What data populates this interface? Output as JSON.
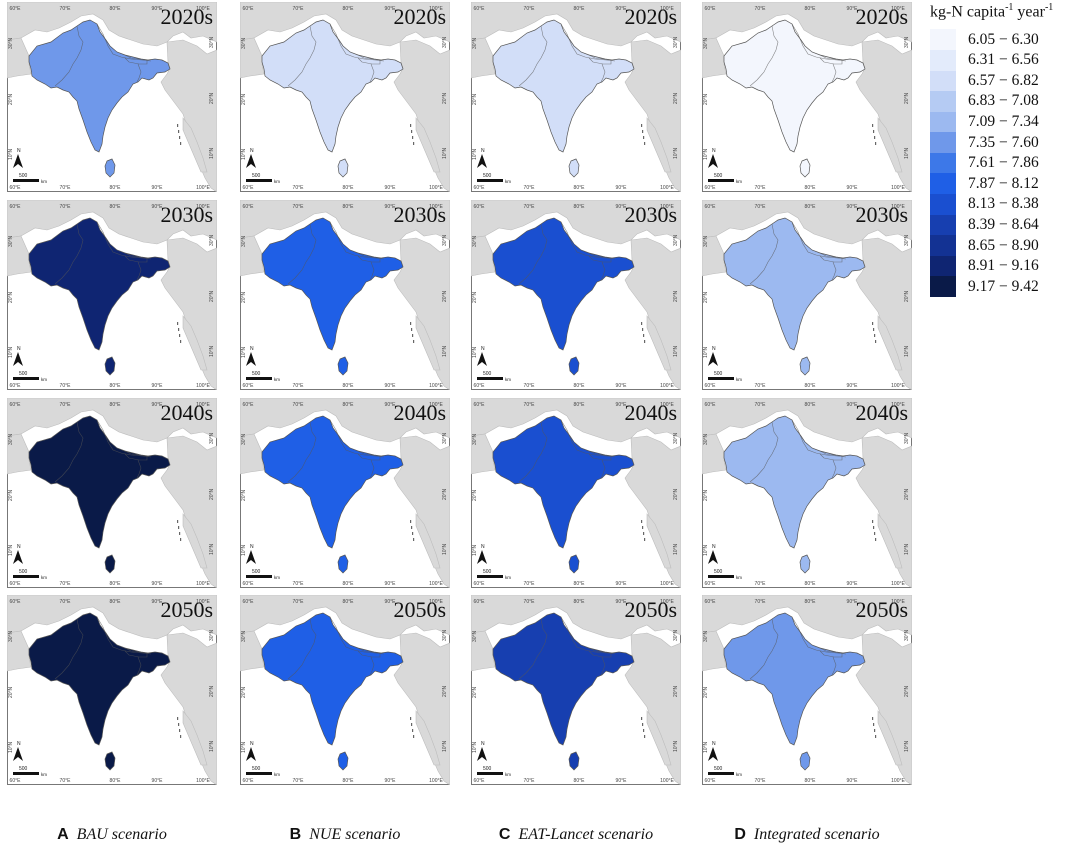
{
  "legend": {
    "title_main": "kg-N capita",
    "title_sup1": "-1",
    "title_mid": " year",
    "title_sup2": "-1",
    "classes": [
      {
        "label": "6.05 − 6.30",
        "color": "#f3f6fd"
      },
      {
        "label": "6.31 − 6.56",
        "color": "#e3ebfb"
      },
      {
        "label": "6.57 − 6.82",
        "color": "#d2def8"
      },
      {
        "label": "6.83 − 7.08",
        "color": "#b5cbf3"
      },
      {
        "label": "7.09 − 7.34",
        "color": "#9cb9f0"
      },
      {
        "label": "7.35 − 7.60",
        "color": "#6f98ea"
      },
      {
        "label": "7.61 − 7.86",
        "color": "#3d78e8"
      },
      {
        "label": "7.87 − 8.12",
        "color": "#1f5fe6"
      },
      {
        "label": "8.13 − 8.38",
        "color": "#1a4fd0"
      },
      {
        "label": "8.39 − 8.64",
        "color": "#173fb0"
      },
      {
        "label": "8.65 − 8.90",
        "color": "#133293"
      },
      {
        "label": "8.91 − 9.16",
        "color": "#0f2572"
      },
      {
        "label": "9.17 − 9.42",
        "color": "#0a1a48"
      }
    ]
  },
  "decades": [
    "2020s",
    "2030s",
    "2040s",
    "2050s"
  ],
  "scenarios": [
    {
      "letter": "A",
      "name": "BAU scenario",
      "class_index": [
        5,
        11,
        12,
        12
      ]
    },
    {
      "letter": "B",
      "name": "NUE scenario",
      "class_index": [
        2,
        7,
        7,
        7
      ]
    },
    {
      "letter": "C",
      "name": "EAT-Lancet scenario",
      "class_index": [
        2,
        8,
        8,
        9
      ]
    },
    {
      "letter": "D",
      "name": "Integrated scenario",
      "class_index": [
        0,
        4,
        4,
        5
      ]
    }
  ],
  "map_labels": {
    "lon_ticks": [
      "60°E",
      "70°E",
      "80°E",
      "90°E",
      "100°E"
    ],
    "lat_ticks": [
      "30°N",
      "20°N",
      "10°N"
    ],
    "north": "N",
    "scale_value": "500",
    "scale_unit": "km"
  },
  "colors": {
    "neighbor_land": "#d9d9d9",
    "border": "#555555",
    "frame": "#777777"
  }
}
